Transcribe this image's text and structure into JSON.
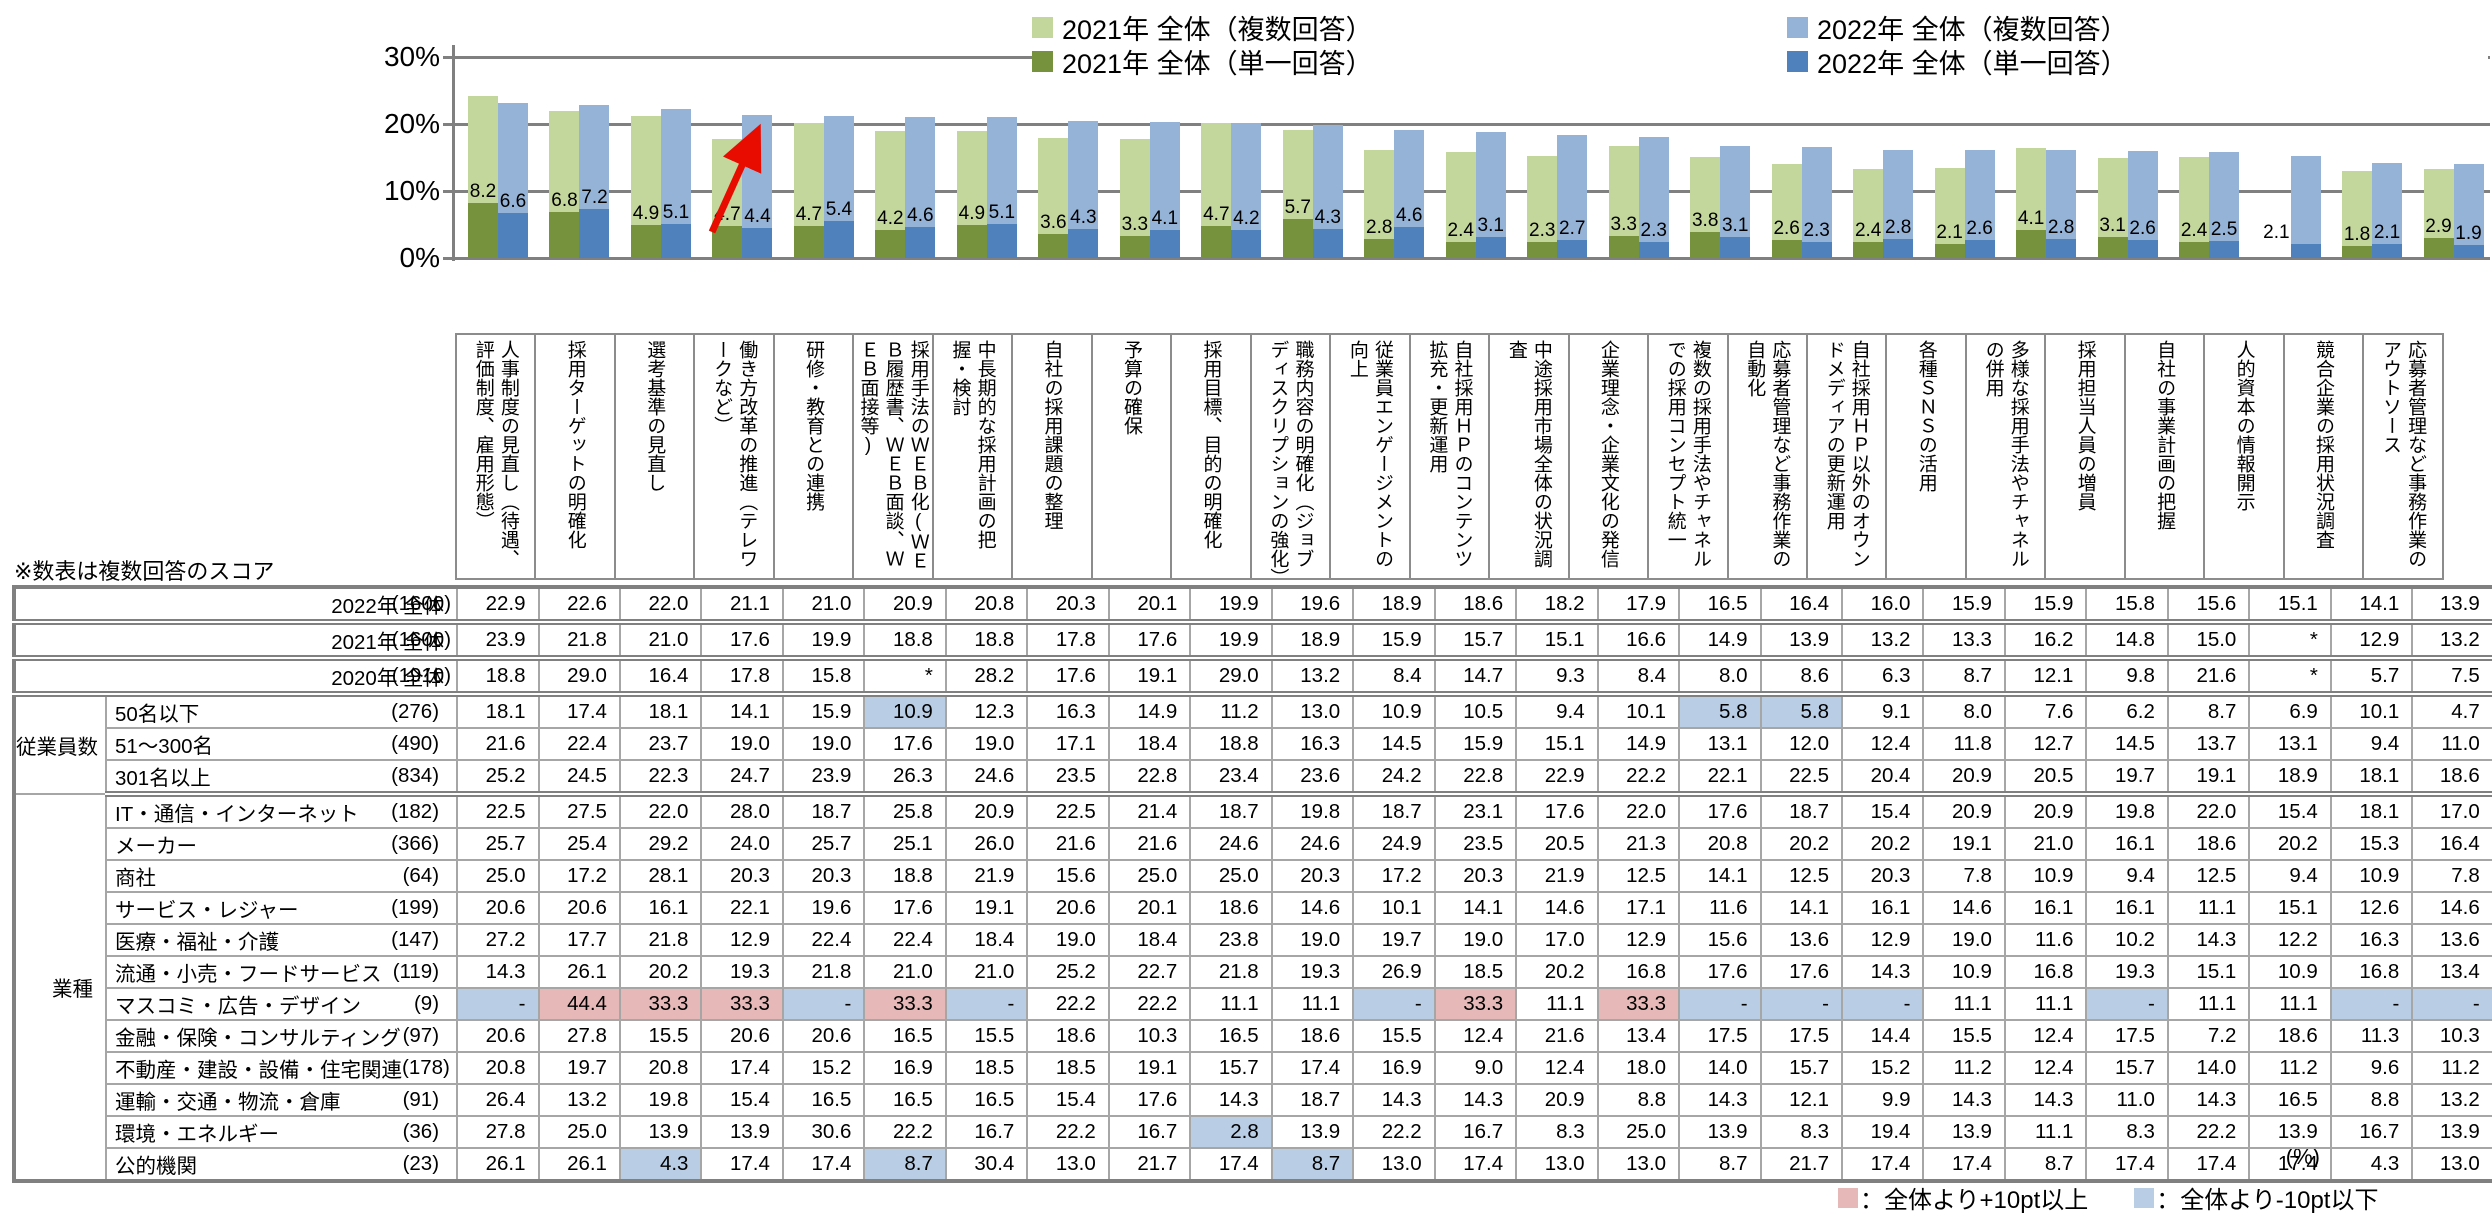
{
  "chart": {
    "yticks": [
      "30%",
      "20%",
      "10%",
      "0%"
    ],
    "legend": [
      {
        "label": "2021年 全体（複数回答）",
        "color": "#c3d69b"
      },
      {
        "label": "2022年 全体（複数回答）",
        "color": "#95b3d7"
      },
      {
        "label": "2021年 全体（単一回答）",
        "color": "#76923c"
      },
      {
        "label": "2022年 全体（単一回答）",
        "color": "#4f81bd"
      }
    ]
  },
  "chart_data": {
    "type": "bar",
    "title": "",
    "xlabel": "",
    "ylabel": "",
    "ylim": [
      0,
      30
    ],
    "grid": true,
    "legend_position": "top-right",
    "annotation": "red arrow pointing up-right at 2022 bar of 働き方改革の推進（テレワークなど）",
    "categories": [
      "人事制度の見直し（待遇、評価制度、雇用形態）",
      "採用ターゲットの明確化",
      "選考基準の見直し",
      "働き方改革の推進（テレワークなど）",
      "研修・教育との連携",
      "採用手法のＷＥＢ化(ＷＥＢ履歴書、ＷＥＢ面談、ＷＥＢ面接等)",
      "中長期的な採用計画の把握・検討",
      "自社の採用課題の整理",
      "予算の確保",
      "採用目標、目的の明確化",
      "職務内容の明確化（ジョブディスクリプションの強化）",
      "従業員エンゲージメントの向上",
      "自社採用ＨＰのコンテンツ拡充・更新運用",
      "中途採用市場全体の状況調査",
      "企業理念・企業文化の発信",
      "複数の採用手法やチャネルでの採用コンセプト統一",
      "応募者管理など事務作業の自動化",
      "自社採用ＨＰ以外のオウンドメディアの更新運用",
      "各種ＳＮＳの活用",
      "多様な採用手法やチャネルの併用",
      "採用担当人員の増員",
      "自社の事業計画の把握",
      "人的資本の情報開示",
      "競合企業の採用状況調査",
      "応募者管理など事務作業のアウトソース"
    ],
    "series": [
      {
        "name": "2021年 全体（複数回答）",
        "color": "#c3d69b",
        "values": [
          "23.9",
          "21.8",
          "21.0",
          "17.6",
          "19.9",
          "18.8",
          "18.8",
          "17.8",
          "17.6",
          "19.9",
          "18.9",
          "15.9",
          "15.7",
          "15.1",
          "16.6",
          "14.9",
          "13.9",
          "13.2",
          "13.3",
          "16.2",
          "14.8",
          "15.0",
          null,
          "12.9",
          "13.2"
        ]
      },
      {
        "name": "2022年 全体（複数回答）",
        "color": "#95b3d7",
        "values": [
          "22.9",
          "22.6",
          "22.0",
          "21.1",
          "21.0",
          "20.9",
          "20.8",
          "20.3",
          "20.1",
          "19.9",
          "19.6",
          "18.9",
          "18.6",
          "18.2",
          "17.9",
          "16.5",
          "16.4",
          "16.0",
          "15.9",
          "15.9",
          "15.8",
          "15.6",
          "15.1",
          "14.1",
          "13.9"
        ]
      },
      {
        "name": "2021年 全体（単一回答）",
        "color": "#76923c",
        "values": [
          "8.2",
          "6.8",
          "4.9",
          "4.7",
          "4.7",
          "4.2",
          "4.9",
          "3.6",
          "3.3",
          "4.7",
          "5.7",
          "2.8",
          "2.4",
          "2.3",
          "3.3",
          "3.8",
          "2.6",
          "2.4",
          "2.1",
          "4.1",
          "3.1",
          "2.4",
          null,
          "1.8",
          "2.9"
        ]
      },
      {
        "name": "2022年 全体（単一回答）",
        "color": "#4f81bd",
        "values": [
          "6.6",
          "7.2",
          "5.1",
          "4.4",
          "5.4",
          "4.6",
          "5.1",
          "4.3",
          "4.1",
          "4.2",
          "4.3",
          "4.6",
          "3.1",
          "2.7",
          "2.3",
          "3.1",
          "2.3",
          "2.8",
          "2.6",
          "2.8",
          "2.6",
          "2.5",
          "2.1",
          "2.1",
          "1.9"
        ]
      }
    ]
  },
  "table": {
    "note": "※数表は複数回答のスコア",
    "unit_label": "(%)",
    "threshold_legend": [
      {
        "label": "：全体より+10pt以上",
        "color": "#e6b9b8"
      },
      {
        "label": "：全体より-10pt以下",
        "color": "#b9cde5"
      }
    ],
    "rows": [
      {
        "type": "year",
        "label": "2022年 全体",
        "base": "(1600)",
        "sep": true,
        "cells": [
          "22.9",
          "22.6",
          "22.0",
          "21.1",
          "21.0",
          "20.9",
          "20.8",
          "20.3",
          "20.1",
          "19.9",
          "19.6",
          "18.9",
          "18.6",
          "18.2",
          "17.9",
          "16.5",
          "16.4",
          "16.0",
          "15.9",
          "15.9",
          "15.8",
          "15.6",
          "15.1",
          "14.1",
          "13.9"
        ]
      },
      {
        "type": "year",
        "label": "2021年 全体",
        "base": "(1600)",
        "sep": true,
        "cells": [
          "23.9",
          "21.8",
          "21.0",
          "17.6",
          "19.9",
          "18.8",
          "18.8",
          "17.8",
          "17.6",
          "19.9",
          "18.9",
          "15.9",
          "15.7",
          "15.1",
          "16.6",
          "14.9",
          "13.9",
          "13.2",
          "13.3",
          "16.2",
          "14.8",
          "15.0",
          "*",
          "12.9",
          "13.2"
        ]
      },
      {
        "type": "year",
        "label": "2020年 全体",
        "base": "(1910)",
        "sep": true,
        "cells": [
          "18.8",
          "29.0",
          "16.4",
          "17.8",
          "15.8",
          "*",
          "28.2",
          "17.6",
          "19.1",
          "29.0",
          "13.2",
          "8.4",
          "14.7",
          "9.3",
          "8.4",
          "8.0",
          "8.6",
          "6.3",
          "8.7",
          "12.1",
          "9.8",
          "21.6",
          "*",
          "5.7",
          "7.5"
        ]
      },
      {
        "type": "sub",
        "group": "従業員数",
        "group_span": 3,
        "label": "50名以下",
        "base": "(276)",
        "hl": {
          "5": "minus",
          "15": "minus",
          "16": "minus"
        },
        "cells": [
          "18.1",
          "17.4",
          "18.1",
          "14.1",
          "15.9",
          "10.9",
          "12.3",
          "16.3",
          "14.9",
          "11.2",
          "13.0",
          "10.9",
          "10.5",
          "9.4",
          "10.1",
          "5.8",
          "5.8",
          "9.1",
          "8.0",
          "7.6",
          "6.2",
          "8.7",
          "6.9",
          "10.1",
          "4.7"
        ]
      },
      {
        "type": "sub",
        "label": "51～300名",
        "base": "(490)",
        "cells": [
          "21.6",
          "22.4",
          "23.7",
          "19.0",
          "19.0",
          "17.6",
          "19.0",
          "17.1",
          "18.4",
          "18.8",
          "16.3",
          "14.5",
          "15.9",
          "15.1",
          "14.9",
          "13.1",
          "12.0",
          "12.4",
          "11.8",
          "12.7",
          "14.5",
          "13.7",
          "13.1",
          "9.4",
          "11.0"
        ]
      },
      {
        "type": "sub",
        "label": "301名以上",
        "base": "(834)",
        "sep": true,
        "cells": [
          "25.2",
          "24.5",
          "22.3",
          "24.7",
          "23.9",
          "26.3",
          "24.6",
          "23.5",
          "22.8",
          "23.4",
          "23.6",
          "24.2",
          "22.8",
          "22.9",
          "22.2",
          "22.1",
          "22.5",
          "20.4",
          "20.9",
          "20.5",
          "19.7",
          "19.1",
          "18.9",
          "18.1",
          "18.6"
        ]
      },
      {
        "type": "sub",
        "group": "業種",
        "group_span": 12,
        "label": "IT・通信・インターネット",
        "base": "(182)",
        "cells": [
          "22.5",
          "27.5",
          "22.0",
          "28.0",
          "18.7",
          "25.8",
          "20.9",
          "22.5",
          "21.4",
          "18.7",
          "19.8",
          "18.7",
          "23.1",
          "17.6",
          "22.0",
          "17.6",
          "18.7",
          "15.4",
          "20.9",
          "20.9",
          "19.8",
          "22.0",
          "15.4",
          "18.1",
          "17.0"
        ]
      },
      {
        "type": "sub",
        "label": "メーカー",
        "base": "(366)",
        "cells": [
          "25.7",
          "25.4",
          "29.2",
          "24.0",
          "25.7",
          "25.1",
          "26.0",
          "21.6",
          "21.6",
          "24.6",
          "24.6",
          "24.9",
          "23.5",
          "20.5",
          "21.3",
          "20.8",
          "20.2",
          "20.2",
          "19.1",
          "21.0",
          "16.1",
          "18.6",
          "20.2",
          "15.3",
          "16.4"
        ]
      },
      {
        "type": "sub",
        "label": "商社",
        "base": "(64)",
        "cells": [
          "25.0",
          "17.2",
          "28.1",
          "20.3",
          "20.3",
          "18.8",
          "21.9",
          "15.6",
          "25.0",
          "25.0",
          "20.3",
          "17.2",
          "20.3",
          "21.9",
          "12.5",
          "14.1",
          "12.5",
          "20.3",
          "7.8",
          "10.9",
          "9.4",
          "12.5",
          "9.4",
          "10.9",
          "7.8"
        ]
      },
      {
        "type": "sub",
        "label": "サービス・レジャー",
        "base": "(199)",
        "cells": [
          "20.6",
          "20.6",
          "16.1",
          "22.1",
          "19.6",
          "17.6",
          "19.1",
          "20.6",
          "20.1",
          "18.6",
          "14.6",
          "10.1",
          "14.1",
          "14.6",
          "17.1",
          "11.6",
          "14.1",
          "16.1",
          "14.6",
          "16.1",
          "16.1",
          "11.1",
          "15.1",
          "12.6",
          "14.6"
        ]
      },
      {
        "type": "sub",
        "label": "医療・福祉・介護",
        "base": "(147)",
        "cells": [
          "27.2",
          "17.7",
          "21.8",
          "12.9",
          "22.4",
          "22.4",
          "18.4",
          "19.0",
          "18.4",
          "23.8",
          "19.0",
          "19.7",
          "19.0",
          "17.0",
          "12.9",
          "15.6",
          "13.6",
          "12.9",
          "19.0",
          "11.6",
          "10.2",
          "14.3",
          "12.2",
          "16.3",
          "13.6"
        ]
      },
      {
        "type": "sub",
        "label": "流通・小売・フードサービス",
        "base": "(119)",
        "cells": [
          "14.3",
          "26.1",
          "20.2",
          "19.3",
          "21.8",
          "21.0",
          "21.0",
          "25.2",
          "22.7",
          "21.8",
          "19.3",
          "26.9",
          "18.5",
          "20.2",
          "16.8",
          "17.6",
          "17.6",
          "14.3",
          "10.9",
          "16.8",
          "19.3",
          "15.1",
          "10.9",
          "16.8",
          "13.4"
        ]
      },
      {
        "type": "sub",
        "label": "マスコミ・広告・デザイン",
        "base": "(9)",
        "hl": {
          "0": "minus",
          "1": "plus",
          "2": "plus",
          "3": "plus",
          "4": "minus",
          "5": "plus",
          "6": "minus",
          "11": "minus",
          "12": "plus",
          "14": "plus",
          "15": "minus",
          "16": "minus",
          "17": "minus",
          "20": "minus",
          "23": "minus",
          "24": "minus"
        },
        "cells": [
          "-",
          "44.4",
          "33.3",
          "33.3",
          "-",
          "33.3",
          "-",
          "22.2",
          "22.2",
          "11.1",
          "11.1",
          "-",
          "33.3",
          "11.1",
          "33.3",
          "-",
          "-",
          "-",
          "11.1",
          "11.1",
          "-",
          "11.1",
          "11.1",
          "-",
          "-"
        ]
      },
      {
        "type": "sub",
        "label": "金融・保険・コンサルティング",
        "base": "(97)",
        "cells": [
          "20.6",
          "27.8",
          "15.5",
          "20.6",
          "20.6",
          "16.5",
          "15.5",
          "18.6",
          "10.3",
          "16.5",
          "18.6",
          "15.5",
          "12.4",
          "21.6",
          "13.4",
          "17.5",
          "17.5",
          "14.4",
          "15.5",
          "12.4",
          "17.5",
          "7.2",
          "18.6",
          "11.3",
          "10.3"
        ]
      },
      {
        "type": "sub",
        "label": "不動産・建設・設備・住宅関連",
        "base": "(178)",
        "cells": [
          "20.8",
          "19.7",
          "20.8",
          "17.4",
          "15.2",
          "16.9",
          "18.5",
          "18.5",
          "19.1",
          "15.7",
          "17.4",
          "16.9",
          "9.0",
          "12.4",
          "18.0",
          "14.0",
          "15.7",
          "15.2",
          "11.2",
          "12.4",
          "15.7",
          "14.0",
          "11.2",
          "9.6",
          "11.2"
        ]
      },
      {
        "type": "sub",
        "label": "運輸・交通・物流・倉庫",
        "base": "(91)",
        "cells": [
          "26.4",
          "13.2",
          "19.8",
          "15.4",
          "16.5",
          "16.5",
          "16.5",
          "15.4",
          "17.6",
          "14.3",
          "18.7",
          "14.3",
          "14.3",
          "20.9",
          "8.8",
          "14.3",
          "12.1",
          "9.9",
          "14.3",
          "14.3",
          "11.0",
          "14.3",
          "16.5",
          "8.8",
          "13.2"
        ]
      },
      {
        "type": "sub",
        "label": "環境・エネルギー",
        "base": "(36)",
        "hl": {
          "9": "minus"
        },
        "cells": [
          "27.8",
          "25.0",
          "13.9",
          "13.9",
          "30.6",
          "22.2",
          "16.7",
          "22.2",
          "16.7",
          "2.8",
          "13.9",
          "22.2",
          "16.7",
          "8.3",
          "25.0",
          "13.9",
          "8.3",
          "19.4",
          "13.9",
          "11.1",
          "8.3",
          "22.2",
          "13.9",
          "16.7",
          "13.9"
        ]
      },
      {
        "type": "sub",
        "label": "公的機関",
        "base": "(23)",
        "hl": {
          "2": "minus",
          "5": "minus",
          "10": "minus"
        },
        "cells": [
          "26.1",
          "26.1",
          "4.3",
          "17.4",
          "17.4",
          "8.7",
          "30.4",
          "13.0",
          "21.7",
          "17.4",
          "8.7",
          "13.0",
          "17.4",
          "13.0",
          "13.0",
          "8.7",
          "21.7",
          "17.4",
          "17.4",
          "8.7",
          "17.4",
          "17.4",
          "17.4",
          "4.3",
          "13.0"
        ]
      }
    ]
  }
}
